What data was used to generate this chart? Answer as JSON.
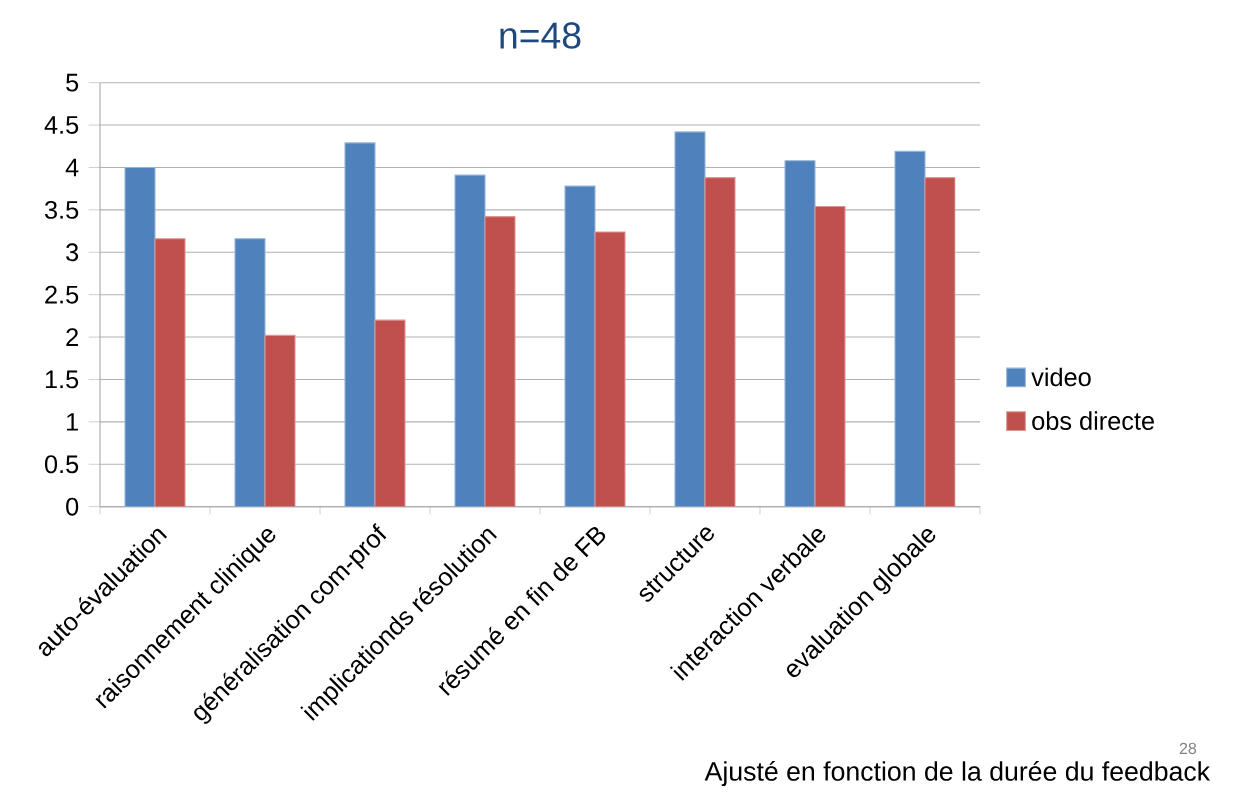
{
  "chart_data": {
    "type": "bar",
    "title": "n=48",
    "categories": [
      "auto-évaluation",
      "raisonnement clinique",
      "généralisation com-prof",
      "implicationds résolution",
      "résumé en fin de FB",
      "structure",
      "interaction verbale",
      "evaluation globale"
    ],
    "series": [
      {
        "name": "video",
        "color": "#4f81bd",
        "values": [
          4.0,
          3.16,
          4.29,
          3.91,
          3.78,
          4.42,
          4.08,
          4.19
        ]
      },
      {
        "name": "obs directe",
        "color": "#c0504d",
        "values": [
          3.16,
          2.02,
          2.2,
          3.42,
          3.24,
          3.88,
          3.54,
          3.88
        ]
      }
    ],
    "ylim": [
      0,
      5
    ],
    "yticks": [
      0,
      0.5,
      1,
      1.5,
      2,
      2.5,
      3,
      3.5,
      4,
      4.5,
      5
    ],
    "grid": "y",
    "legend": "right",
    "annotations": [
      "28",
      "Ajusté en fonction de la durée du feedback"
    ]
  }
}
